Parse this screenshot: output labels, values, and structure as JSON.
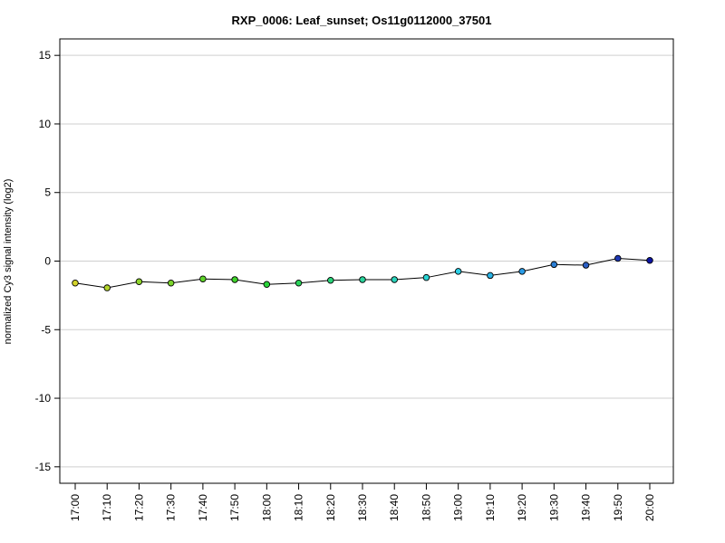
{
  "chart_data": {
    "type": "line",
    "title": "RXP_0006: Leaf_sunset; Os11g0112000_37501",
    "xlabel": "",
    "ylabel": "normalized Cy3 signal intensity (log2)",
    "ylim": [
      -16.2,
      16.2
    ],
    "yticks": [
      -15,
      -10,
      -5,
      0,
      5,
      10,
      15
    ],
    "ytick_labels": [
      "-15",
      "-10",
      "-5",
      "0",
      "5",
      "10",
      "15"
    ],
    "grid": "horizontal",
    "categories": [
      "17:00",
      "17:10",
      "17:20",
      "17:30",
      "17:40",
      "17:50",
      "18:00",
      "18:10",
      "18:20",
      "18:30",
      "18:40",
      "18:50",
      "19:00",
      "19:10",
      "19:20",
      "19:30",
      "19:40",
      "19:50",
      "20:00"
    ],
    "series": [
      {
        "values": [
          -1.6,
          -1.95,
          -1.5,
          -1.6,
          -1.3,
          -1.35,
          -1.7,
          -1.6,
          -1.4,
          -1.35,
          -1.35,
          -1.2,
          -0.75,
          -1.05,
          -0.75,
          -0.25,
          -0.3,
          0.2,
          0.05
        ],
        "point_colors": [
          "#d4d42a",
          "#b2d42a",
          "#8ed42a",
          "#7ad42a",
          "#5fd42a",
          "#3fd42a",
          "#2ad43a",
          "#2ad45a",
          "#2ad47a",
          "#2ad49c",
          "#2ad4bc",
          "#2ad4d4",
          "#2acfe6",
          "#2ab4e6",
          "#2a9ce6",
          "#2a7ed4",
          "#2a5ec4",
          "#1e38b4",
          "#0c14a4"
        ],
        "line_color": "#000000"
      }
    ]
  }
}
